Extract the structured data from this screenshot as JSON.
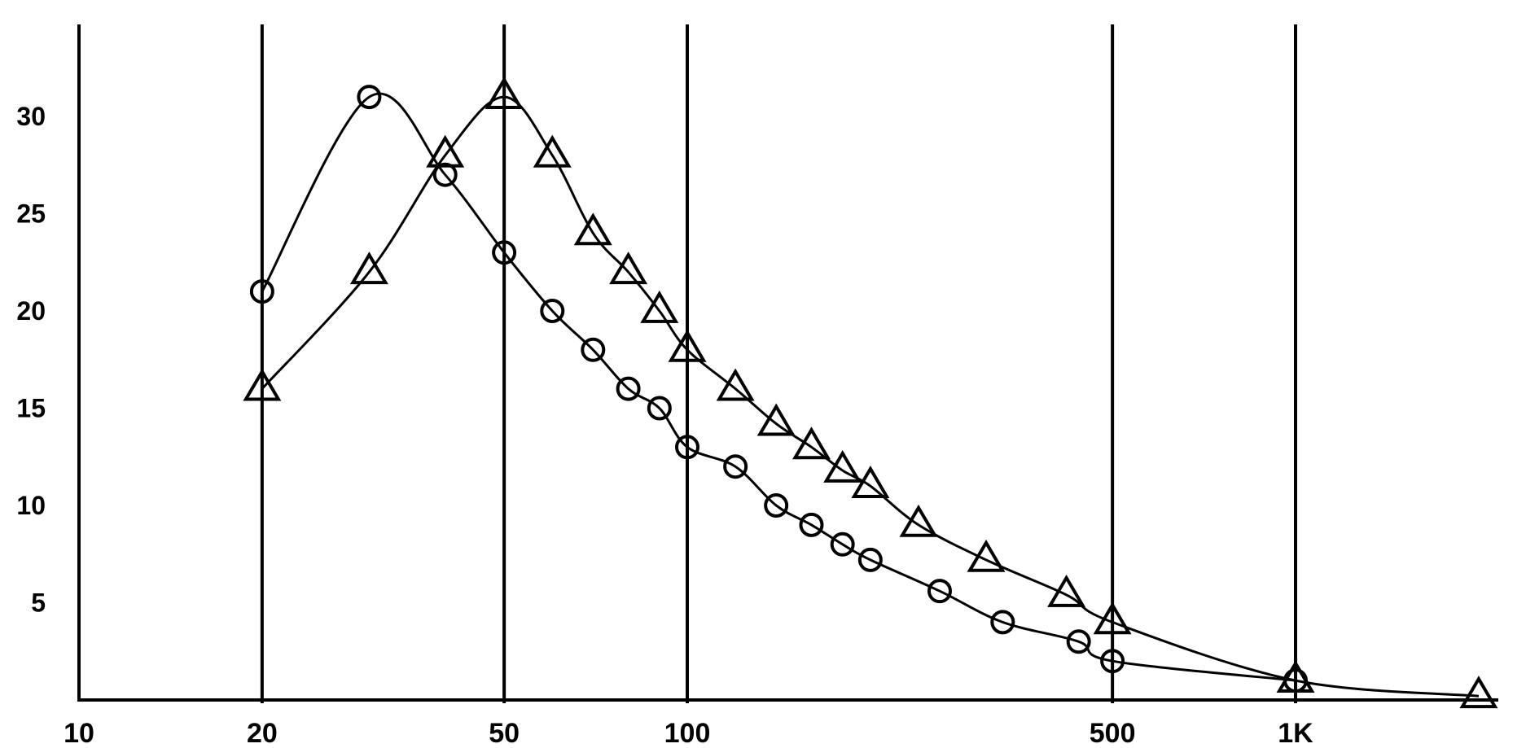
{
  "chart_data": {
    "type": "line",
    "title": "",
    "xlabel": "",
    "ylabel": "",
    "x_scale": "log",
    "xlim": [
      10,
      2000
    ],
    "ylim": [
      0,
      35
    ],
    "grid": "vertical lines at 20, 50, 100, 500, 1K",
    "legend": "none",
    "x_ticks": [
      {
        "value": 10,
        "label": "10"
      },
      {
        "value": 20,
        "label": "20"
      },
      {
        "value": 50,
        "label": "50"
      },
      {
        "value": 100,
        "label": "100"
      },
      {
        "value": 500,
        "label": "500"
      },
      {
        "value": 1000,
        "label": "1K"
      }
    ],
    "y_ticks": [
      {
        "value": 5,
        "label": "5"
      },
      {
        "value": 10,
        "label": "10"
      },
      {
        "value": 15,
        "label": "15"
      },
      {
        "value": 20,
        "label": "20"
      },
      {
        "value": 25,
        "label": "25"
      },
      {
        "value": 30,
        "label": "30"
      }
    ],
    "gridlines_x": [
      20,
      50,
      100,
      500,
      1000
    ],
    "series": [
      {
        "marker": "circle",
        "points": [
          [
            20,
            21
          ],
          [
            30,
            31
          ],
          [
            40,
            27
          ],
          [
            50,
            23
          ],
          [
            60,
            20
          ],
          [
            70,
            18
          ],
          [
            80,
            16
          ],
          [
            90,
            15
          ],
          [
            100,
            13
          ],
          [
            120,
            12
          ],
          [
            140,
            10
          ],
          [
            160,
            9
          ],
          [
            180,
            8
          ],
          [
            200,
            7.2
          ],
          [
            260,
            5.6
          ],
          [
            330,
            4
          ],
          [
            440,
            3
          ],
          [
            500,
            2
          ],
          [
            1000,
            1
          ]
        ]
      },
      {
        "marker": "triangle",
        "points": [
          [
            20,
            16
          ],
          [
            30,
            22
          ],
          [
            40,
            28
          ],
          [
            50,
            31
          ],
          [
            60,
            28
          ],
          [
            70,
            24
          ],
          [
            80,
            22
          ],
          [
            90,
            20
          ],
          [
            100,
            18
          ],
          [
            120,
            16
          ],
          [
            140,
            14.2
          ],
          [
            160,
            13
          ],
          [
            180,
            11.8
          ],
          [
            200,
            11
          ],
          [
            240,
            9
          ],
          [
            310,
            7.2
          ],
          [
            420,
            5.4
          ],
          [
            500,
            4
          ],
          [
            1000,
            1
          ],
          [
            2000,
            0.2
          ]
        ]
      }
    ]
  }
}
